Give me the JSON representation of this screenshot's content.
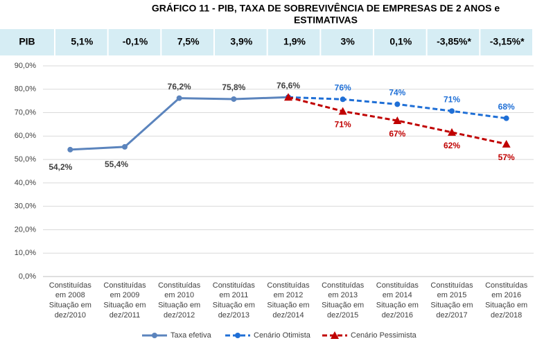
{
  "pib_table": {
    "header": "PIB",
    "cells": [
      "5,1%",
      "-0,1%",
      "7,5%",
      "3,9%",
      "1,9%",
      "3%",
      "0,1%",
      "-3,85%*",
      "-3,15%*"
    ]
  },
  "chart_data": {
    "type": "line",
    "title": [
      "GRÁFICO 11 -  PIB, TAXA DE SOBREVIVÊNCIA DE EMPRESAS DE 2 ANOS e",
      "ESTIMATIVAS"
    ],
    "categories": [
      [
        "Constituídas",
        "em 2008",
        "Situação em",
        "dez/2010"
      ],
      [
        "Constituídas",
        "em 2009",
        "Situação em",
        "dez/2011"
      ],
      [
        "Constituídas",
        "em 2010",
        "Situação em",
        "dez/2012"
      ],
      [
        "Constituídas",
        "em 2011",
        "Situação em",
        "dez/2013"
      ],
      [
        "Constituídas",
        "em 2012",
        "Situação em",
        "dez/2014"
      ],
      [
        "Constituídas",
        "em 2013",
        "Situação em",
        "dez/2015"
      ],
      [
        "Constituídas",
        "em 2014",
        "Situação em",
        "dez/2016"
      ],
      [
        "Constituídas",
        "em 2015",
        "Situação em",
        "dez/2017"
      ],
      [
        "Constituídas",
        "em 2016",
        "Situação em",
        "dez/2018"
      ]
    ],
    "series": [
      {
        "name": "Taxa efetiva",
        "color": "#5b84bd",
        "marker": "circle",
        "dashed": false,
        "values": [
          54.2,
          55.4,
          76.2,
          75.8,
          76.6,
          null,
          null,
          null,
          null
        ],
        "value_labels": [
          "54,2%",
          "55,4%",
          "76,2%",
          "75,8%",
          "76,6%",
          null,
          null,
          null,
          null
        ]
      },
      {
        "name": "Cenário Otimista",
        "color": "#1f6fd6",
        "marker": "circle",
        "dashed": true,
        "values": [
          null,
          null,
          null,
          null,
          76.6,
          75.7,
          73.6,
          70.7,
          67.6
        ],
        "value_labels": [
          null,
          null,
          null,
          null,
          null,
          "76%",
          "74%",
          "71%",
          "68%"
        ]
      },
      {
        "name": "Cenário Pessimista",
        "color": "#c00000",
        "marker": "triangle",
        "dashed": true,
        "values": [
          null,
          null,
          null,
          null,
          76.6,
          70.6,
          66.6,
          61.6,
          56.6
        ],
        "value_labels": [
          null,
          null,
          null,
          null,
          null,
          "71%",
          "67%",
          "62%",
          "57%"
        ]
      }
    ],
    "ylim": [
      0,
      90
    ],
    "yticks": [
      {
        "value": 0,
        "label": "0,0%"
      },
      {
        "value": 10,
        "label": "10,0%"
      },
      {
        "value": 20,
        "label": "20,0%"
      },
      {
        "value": 30,
        "label": "30,0%"
      },
      {
        "value": 40,
        "label": "40,0%"
      },
      {
        "value": 50,
        "label": "50,0%"
      },
      {
        "value": 60,
        "label": "60,0%"
      },
      {
        "value": 70,
        "label": "70,0%"
      },
      {
        "value": 80,
        "label": "80,0%"
      },
      {
        "value": 90,
        "label": "90,0%"
      }
    ],
    "grid": true,
    "legend": "bottom"
  }
}
